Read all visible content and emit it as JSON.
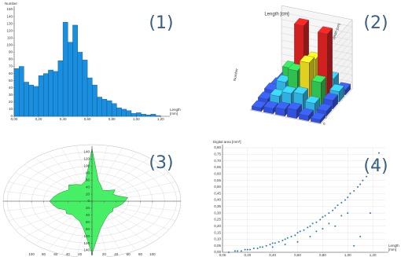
{
  "chart_data": [
    {
      "type": "histogram",
      "panel_label": "(1)",
      "ylabel": "Number",
      "xlabel": [
        "Length",
        "[mm]"
      ],
      "color": "#1a8fe0",
      "bins": [
        0,
        0.04,
        0.08,
        0.12,
        0.16,
        0.2,
        0.24,
        0.28,
        0.32,
        0.36,
        0.4,
        0.44,
        0.48,
        0.52,
        0.56,
        0.6,
        0.64,
        0.68,
        0.72,
        0.76,
        0.8,
        0.84,
        0.88,
        0.92,
        0.96,
        1,
        1.04,
        1.08,
        1.12,
        1.16,
        1.2
      ],
      "counts": [
        67,
        70,
        48,
        44,
        42,
        57,
        60,
        65,
        63,
        78,
        132,
        104,
        128,
        90,
        79,
        54,
        44,
        27,
        24,
        22,
        18,
        12,
        10,
        8,
        4,
        5,
        3,
        2,
        3,
        1
      ],
      "xlim": [
        0,
        1.25
      ],
      "ylim": [
        0,
        150
      ],
      "xticks": [
        {
          "value": 0,
          "label": "0,00"
        },
        {
          "value": 0.2,
          "label": "0,20"
        },
        {
          "value": 0.4,
          "label": "0,40"
        },
        {
          "value": 0.6,
          "label": "0,60"
        },
        {
          "value": 0.8,
          "label": "0,80"
        },
        {
          "value": 1,
          "label": "1,00"
        },
        {
          "value": 1.2,
          "label": "1,20"
        }
      ],
      "yticks": [
        0,
        10,
        20,
        30,
        40,
        50,
        60,
        70,
        80,
        90,
        100,
        110,
        120,
        130,
        140,
        150
      ]
    },
    {
      "type": "bar3d",
      "panel_label": "(2)",
      "xlabel": "Length [cm]",
      "ylabel": "Width [cm]",
      "zlabel": "Number",
      "values": [
        [
          10,
          15,
          20,
          25,
          15,
          10
        ],
        [
          15,
          30,
          45,
          50,
          30,
          15
        ],
        [
          20,
          50,
          90,
          120,
          70,
          25
        ],
        [
          15,
          70,
          200,
          110,
          190,
          30
        ],
        [
          10,
          25,
          60,
          80,
          40,
          15
        ]
      ],
      "colors": [
        "#3050e0",
        "#30b0e0",
        "#30c050",
        "#e0d020",
        "#d02020"
      ],
      "color_breaks": [
        30,
        60,
        100,
        160
      ],
      "zlim": [
        0,
        200
      ],
      "zticks": [
        0,
        20,
        40,
        60,
        80,
        100,
        120,
        140,
        160,
        180,
        200
      ]
    },
    {
      "type": "polar",
      "panel_label": "(3)",
      "color": "#33ee55",
      "angles": [
        0,
        10,
        20,
        30,
        40,
        50,
        60,
        70,
        80,
        90,
        100,
        110,
        120,
        130,
        140,
        150,
        160,
        170,
        180,
        190,
        200,
        210,
        220,
        230,
        240,
        250,
        260,
        270,
        280,
        290,
        300,
        310,
        320,
        330,
        340,
        350
      ],
      "values": [
        150,
        60,
        45,
        35,
        40,
        50,
        40,
        45,
        60,
        55,
        50,
        45,
        40,
        45,
        45,
        50,
        60,
        80,
        150,
        80,
        60,
        55,
        50,
        55,
        50,
        60,
        65,
        70,
        65,
        60,
        55,
        50,
        60,
        55,
        50,
        60
      ],
      "xlim": [
        -130,
        130
      ],
      "ylim": [
        -150,
        150
      ],
      "xticks": [
        {
          "value": -100,
          "label": "100"
        },
        {
          "value": -80,
          "label": "80"
        },
        {
          "value": -60,
          "label": "60"
        },
        {
          "value": -40,
          "label": "40"
        },
        {
          "value": -20,
          "label": "20"
        },
        0,
        20,
        40,
        60,
        80,
        100
      ],
      "yticks": [
        {
          "value": -140,
          "label": "140"
        },
        {
          "value": -120,
          "label": "120"
        },
        {
          "value": -100,
          "label": "100"
        },
        {
          "value": -80,
          "label": "80"
        },
        {
          "value": -60,
          "label": "60"
        },
        {
          "value": -40,
          "label": "40"
        },
        {
          "value": -20,
          "label": "20"
        },
        0,
        20,
        40,
        60,
        80,
        100,
        120,
        140
      ]
    },
    {
      "type": "scatter",
      "panel_label": "(4)",
      "ylabel": "Digital area [mm²]",
      "xlabel": [
        "Length",
        "[mm]"
      ],
      "color": "#2a7ab0",
      "grid": true,
      "x": [
        0.05,
        0.1,
        0.12,
        0.15,
        0.18,
        0.2,
        0.22,
        0.25,
        0.28,
        0.3,
        0.32,
        0.35,
        0.38,
        0.4,
        0.42,
        0.45,
        0.48,
        0.5,
        0.52,
        0.55,
        0.58,
        0.6,
        0.62,
        0.65,
        0.68,
        0.7,
        0.72,
        0.75,
        0.78,
        0.8,
        0.82,
        0.85,
        0.88,
        0.9,
        0.92,
        0.95,
        0.98,
        1.0,
        1.02,
        1.05,
        1.08,
        1.1,
        1.12,
        1.15,
        1.2,
        1.25,
        0.6,
        0.7,
        0.8,
        0.9,
        1.0,
        1.1,
        0.5,
        0.75,
        0.85,
        0.95,
        1.05,
        1.18,
        1.22,
        0.4
      ],
      "y": [
        0,
        0.01,
        0.01,
        0.01,
        0.02,
        0.02,
        0.02,
        0.03,
        0.03,
        0.04,
        0.04,
        0.05,
        0.06,
        0.07,
        0.07,
        0.08,
        0.09,
        0.1,
        0.11,
        0.12,
        0.13,
        0.15,
        0.16,
        0.17,
        0.19,
        0.2,
        0.22,
        0.23,
        0.25,
        0.27,
        0.28,
        0.3,
        0.32,
        0.34,
        0.36,
        0.38,
        0.4,
        0.42,
        0.45,
        0.47,
        0.5,
        0.52,
        0.55,
        0.58,
        0.65,
        0.76,
        0.08,
        0.12,
        0.18,
        0.2,
        0.3,
        0.12,
        0.06,
        0.16,
        0.22,
        0.28,
        0.05,
        0.3,
        0.68,
        0.04
      ],
      "xlim": [
        0,
        1.3
      ],
      "ylim": [
        0,
        0.8
      ],
      "xticks": [
        {
          "value": 0,
          "label": "0,00"
        },
        {
          "value": 0.2,
          "label": "0,20"
        },
        {
          "value": 0.4,
          "label": "0,40"
        },
        {
          "value": 0.6,
          "label": "0,60"
        },
        {
          "value": 0.8,
          "label": "0,80"
        },
        {
          "value": 1,
          "label": "1,00"
        },
        {
          "value": 1.2,
          "label": "1,20"
        }
      ],
      "yticks": [
        {
          "value": 0,
          "label": "0,00"
        },
        {
          "value": 0.05,
          "label": "0,05"
        },
        {
          "value": 0.1,
          "label": "0,10"
        },
        {
          "value": 0.15,
          "label": "0,15"
        },
        {
          "value": 0.2,
          "label": "0,20"
        },
        {
          "value": 0.25,
          "label": "0,25"
        },
        {
          "value": 0.3,
          "label": "0,30"
        },
        {
          "value": 0.35,
          "label": "0,35"
        },
        {
          "value": 0.4,
          "label": "0,40"
        },
        {
          "value": 0.45,
          "label": "0,45"
        },
        {
          "value": 0.5,
          "label": "0,50"
        },
        {
          "value": 0.55,
          "label": "0,55"
        },
        {
          "value": 0.6,
          "label": "0,60"
        },
        {
          "value": 0.65,
          "label": "0,65"
        },
        {
          "value": 0.7,
          "label": "0,70"
        },
        {
          "value": 0.75,
          "label": "0,75"
        },
        {
          "value": 0.8,
          "label": "0,80"
        }
      ]
    }
  ]
}
